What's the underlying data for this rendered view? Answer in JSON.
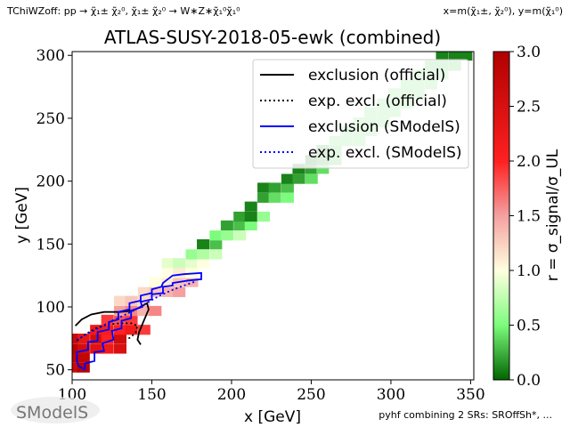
{
  "header": {
    "process_label": "TChiWZoff: pp → χ̃₁± χ̃₂⁰, χ̃₁± χ̃₂⁰ → W∗Z∗χ̃₁⁰χ̃₁⁰",
    "axes_note": "x=m(χ̃₁±, χ̃₂⁰), y=m(χ̃₁⁰)"
  },
  "footer": {
    "logo_text": "SModelS",
    "combination_note": "pyhf combining 2 SRs: SROffSh*, ..."
  },
  "colors": {
    "exclusion_official": "#000000",
    "exclusion_smodels": "#0000ff"
  },
  "chart_data": {
    "type": "heatmap",
    "title": "ATLAS-SUSY-2018-05-ewk (combined)",
    "xlabel": "x [GeV]",
    "ylabel": "y [GeV]",
    "xlim": [
      100,
      352
    ],
    "ylim": [
      42,
      303
    ],
    "xticks": [
      100,
      150,
      200,
      250,
      300,
      350
    ],
    "yticks": [
      50,
      100,
      150,
      200,
      250,
      300
    ],
    "colorbar": {
      "label": "r = σ_signal/σ_UL",
      "range": [
        0,
        3.0
      ],
      "ticks": [
        0.0,
        0.5,
        1.0,
        1.5,
        2.0,
        2.5,
        3.0
      ]
    },
    "cell_size": [
      7.5,
      7.5
    ],
    "cells": [
      [
        100,
        52,
        2.7
      ],
      [
        100,
        60,
        2.8
      ],
      [
        107,
        52,
        2.9
      ],
      [
        107,
        60,
        2.8
      ],
      [
        100,
        67,
        2.9
      ],
      [
        100,
        75,
        2.7
      ],
      [
        107,
        67,
        2.6
      ],
      [
        107,
        75,
        2.3
      ],
      [
        115,
        67,
        2.4
      ],
      [
        115,
        75,
        2.6
      ],
      [
        122,
        67,
        2.2
      ],
      [
        122,
        75,
        2.0
      ],
      [
        130,
        67,
        2.5
      ],
      [
        130,
        75,
        2.6
      ],
      [
        115,
        82,
        2.2
      ],
      [
        122,
        82,
        2.1
      ],
      [
        130,
        82,
        2.0
      ],
      [
        137,
        82,
        2.2
      ],
      [
        122,
        90,
        1.9
      ],
      [
        130,
        90,
        1.8
      ],
      [
        137,
        90,
        1.9
      ],
      [
        145,
        82,
        1.9
      ],
      [
        130,
        97,
        1.5
      ],
      [
        137,
        97,
        1.6
      ],
      [
        145,
        97,
        1.4
      ],
      [
        152,
        97,
        1.6
      ],
      [
        130,
        105,
        1.2
      ],
      [
        137,
        105,
        1.3
      ],
      [
        145,
        105,
        1.2
      ],
      [
        145,
        112,
        1.2
      ],
      [
        152,
        112,
        1.3
      ],
      [
        160,
        112,
        1.4
      ],
      [
        167,
        112,
        1.5
      ],
      [
        152,
        120,
        1.0
      ],
      [
        160,
        120,
        1.1
      ],
      [
        167,
        120,
        1.3
      ],
      [
        175,
        120,
        1.4
      ],
      [
        160,
        127,
        1.0
      ],
      [
        167,
        127,
        1.1
      ],
      [
        175,
        127,
        1.0
      ],
      [
        160,
        135,
        0.9
      ],
      [
        167,
        135,
        0.8
      ],
      [
        175,
        135,
        0.9
      ],
      [
        182,
        135,
        1.0
      ],
      [
        175,
        142,
        0.6
      ],
      [
        182,
        142,
        0.7
      ],
      [
        190,
        142,
        0.8
      ],
      [
        182,
        150,
        0.1
      ],
      [
        190,
        150,
        0.3
      ],
      [
        190,
        157,
        0.5
      ],
      [
        197,
        157,
        0.6
      ],
      [
        205,
        157,
        0.8
      ],
      [
        197,
        165,
        0.2
      ],
      [
        205,
        165,
        0.3
      ],
      [
        212,
        165,
        0.5
      ],
      [
        205,
        172,
        0.2
      ],
      [
        212,
        172,
        0.1
      ],
      [
        220,
        172,
        0.6
      ],
      [
        212,
        180,
        0.1
      ],
      [
        220,
        187,
        0.2
      ],
      [
        227,
        187,
        0.4
      ],
      [
        235,
        187,
        0.5
      ],
      [
        220,
        195,
        0.1
      ],
      [
        227,
        195,
        0.2
      ],
      [
        235,
        195,
        0.3
      ],
      [
        235,
        202,
        0.1
      ],
      [
        242,
        202,
        0.2
      ],
      [
        250,
        202,
        0.4
      ],
      [
        242,
        210,
        0.1
      ],
      [
        250,
        210,
        0.2
      ],
      [
        257,
        210,
        0.4
      ],
      [
        250,
        217,
        0.1
      ],
      [
        257,
        217,
        0.2
      ],
      [
        265,
        217,
        0.3
      ],
      [
        257,
        225,
        0.2
      ],
      [
        265,
        225,
        0.3
      ],
      [
        265,
        232,
        0.4
      ],
      [
        272,
        232,
        0.4
      ],
      [
        280,
        232,
        0.4
      ],
      [
        272,
        240,
        0.4
      ],
      [
        280,
        240,
        0.4
      ],
      [
        287,
        240,
        0.4
      ],
      [
        280,
        247,
        0.4
      ],
      [
        287,
        247,
        0.4
      ],
      [
        295,
        247,
        0.4
      ],
      [
        287,
        255,
        0.4
      ],
      [
        295,
        255,
        0.4
      ],
      [
        302,
        255,
        0.4
      ],
      [
        295,
        262,
        0.4
      ],
      [
        302,
        262,
        0.4
      ],
      [
        310,
        262,
        0.4
      ],
      [
        302,
        270,
        0.4
      ],
      [
        310,
        270,
        0.4
      ],
      [
        317,
        270,
        0.4
      ],
      [
        310,
        277,
        0.4
      ],
      [
        317,
        277,
        0.4
      ],
      [
        325,
        277,
        0.4
      ],
      [
        317,
        285,
        0.4
      ],
      [
        325,
        285,
        0.4
      ],
      [
        332,
        285,
        0.4
      ],
      [
        325,
        292,
        0.3
      ],
      [
        332,
        292,
        0.3
      ],
      [
        340,
        292,
        0.3
      ],
      [
        332,
        300,
        0.1
      ],
      [
        340,
        300,
        0.1
      ],
      [
        347,
        300,
        0.1
      ]
    ],
    "legend": {
      "position": "top-right",
      "entries": [
        {
          "label": "exclusion (official)",
          "color": "#000000",
          "style": "solid"
        },
        {
          "label": "exp. excl. (official)",
          "color": "#000000",
          "style": "dotted"
        },
        {
          "label": "exclusion (SModelS)",
          "color": "#0000ff",
          "style": "solid"
        },
        {
          "label": "exp. excl. (SModelS)",
          "color": "#0000ff",
          "style": "dotted"
        }
      ]
    },
    "curves": {
      "exclusion_official": [
        [
          102,
          85
        ],
        [
          106,
          90
        ],
        [
          112,
          94
        ],
        [
          120,
          96
        ],
        [
          130,
          96
        ],
        [
          138,
          97
        ],
        [
          143,
          100
        ],
        [
          147,
          103
        ],
        [
          148,
          98
        ],
        [
          146,
          92
        ],
        [
          144,
          86
        ],
        [
          142,
          80
        ],
        [
          141,
          74
        ],
        [
          143,
          70
        ]
      ],
      "exp_excl_official": [
        [
          103,
          73
        ],
        [
          108,
          78
        ],
        [
          115,
          83
        ],
        [
          122,
          86
        ],
        [
          130,
          87
        ],
        [
          137,
          87
        ],
        [
          141,
          85
        ],
        [
          140,
          80
        ],
        [
          137,
          76
        ],
        [
          134,
          74
        ]
      ],
      "exclusion_smodels": [
        [
          108,
          50
        ],
        [
          108,
          55
        ],
        [
          114,
          57
        ],
        [
          114,
          64
        ],
        [
          120,
          65
        ],
        [
          119,
          71
        ],
        [
          126,
          74
        ],
        [
          125,
          81
        ],
        [
          131,
          83
        ],
        [
          131,
          89
        ],
        [
          137,
          91
        ],
        [
          137,
          97
        ],
        [
          144,
          100
        ],
        [
          143,
          104
        ],
        [
          150,
          106
        ],
        [
          150,
          110
        ],
        [
          157,
          111
        ],
        [
          157,
          116
        ],
        [
          163,
          117
        ],
        [
          163,
          119
        ],
        [
          173,
          121
        ],
        [
          181,
          122
        ],
        [
          181,
          127
        ],
        [
          170,
          126
        ],
        [
          163,
          125
        ],
        [
          157,
          119
        ],
        [
          156,
          116
        ],
        [
          150,
          114
        ],
        [
          150,
          111
        ],
        [
          143,
          109
        ],
        [
          143,
          105
        ],
        [
          136,
          103
        ],
        [
          136,
          98
        ],
        [
          129,
          96
        ],
        [
          129,
          90
        ],
        [
          123,
          88
        ],
        [
          123,
          82
        ],
        [
          116,
          80
        ],
        [
          116,
          73
        ],
        [
          110,
          72
        ],
        [
          110,
          66
        ],
        [
          103,
          64
        ],
        [
          103,
          57
        ],
        [
          104,
          53
        ],
        [
          108,
          50
        ]
      ],
      "exp_excl_smodels": [
        [
          103,
          74
        ],
        [
          110,
          79
        ],
        [
          118,
          84
        ],
        [
          125,
          89
        ],
        [
          132,
          93
        ],
        [
          140,
          98
        ],
        [
          148,
          104
        ],
        [
          155,
          109
        ],
        [
          162,
          113
        ],
        [
          170,
          117
        ],
        [
          177,
          120
        ]
      ]
    }
  }
}
